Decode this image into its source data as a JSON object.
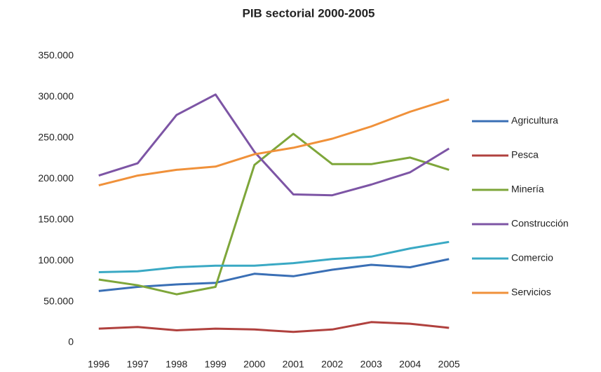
{
  "chart_data": {
    "type": "line",
    "title": "PIB sectorial 2000-2005",
    "categories": [
      "1996",
      "1997",
      "1998",
      "1999",
      "2000",
      "2001",
      "2002",
      "2003",
      "2004",
      "2005"
    ],
    "series": [
      {
        "name": "Agricultura",
        "color": "#3a6fb5",
        "values": [
          63000,
          68000,
          71000,
          73000,
          84000,
          81000,
          89000,
          95000,
          92000,
          102000
        ]
      },
      {
        "name": "Pesca",
        "color": "#b0413e",
        "values": [
          17000,
          19000,
          15000,
          17000,
          16000,
          13000,
          16000,
          25000,
          23000,
          18000
        ]
      },
      {
        "name": "Minería",
        "color": "#7ea63a",
        "values": [
          77000,
          70000,
          59000,
          68000,
          217000,
          255000,
          218000,
          218000,
          226000,
          211000
        ]
      },
      {
        "name": "Construcción",
        "color": "#7d55a5",
        "values": [
          204000,
          219000,
          278000,
          303000,
          233000,
          181000,
          180000,
          193000,
          208000,
          237000
        ]
      },
      {
        "name": "Comercio",
        "color": "#3aa9c4",
        "values": [
          86000,
          87000,
          92000,
          94000,
          94000,
          97000,
          102000,
          105000,
          115000,
          123000
        ]
      },
      {
        "name": "Servicios",
        "color": "#f0913a",
        "values": [
          192000,
          204000,
          211000,
          215000,
          230000,
          238000,
          249000,
          264000,
          282000,
          297000
        ]
      }
    ],
    "ylim": [
      0,
      350000
    ],
    "yticks": [
      0,
      {
        "value": 50000,
        "label": "50.000"
      },
      {
        "value": 100000,
        "label": "100.000"
      },
      {
        "value": 150000,
        "label": "150.000"
      },
      {
        "value": 200000,
        "label": "200.000"
      },
      {
        "value": 250000,
        "label": "250.000"
      },
      {
        "value": 300000,
        "label": "300.000"
      },
      {
        "value": 350000,
        "label": "350.000"
      }
    ],
    "legend": "right"
  }
}
